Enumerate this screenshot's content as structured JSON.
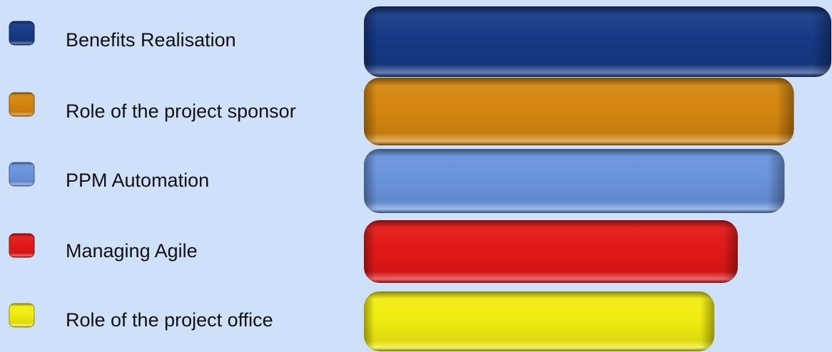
{
  "chart_data": {
    "type": "bar",
    "orientation": "horizontal",
    "categories": [
      "Benefits Realisation",
      "Role of the project sponsor",
      "PPM Automation",
      "Managing Agile",
      "Role of the project office"
    ],
    "values": [
      100,
      92,
      90,
      80,
      75
    ],
    "colors": [
      "#163a86",
      "#d5860f",
      "#6a94dd",
      "#e21818",
      "#f1ec10"
    ],
    "legend_position": "left",
    "grid": false,
    "axes_visible": false,
    "style": "3d-rounded"
  }
}
